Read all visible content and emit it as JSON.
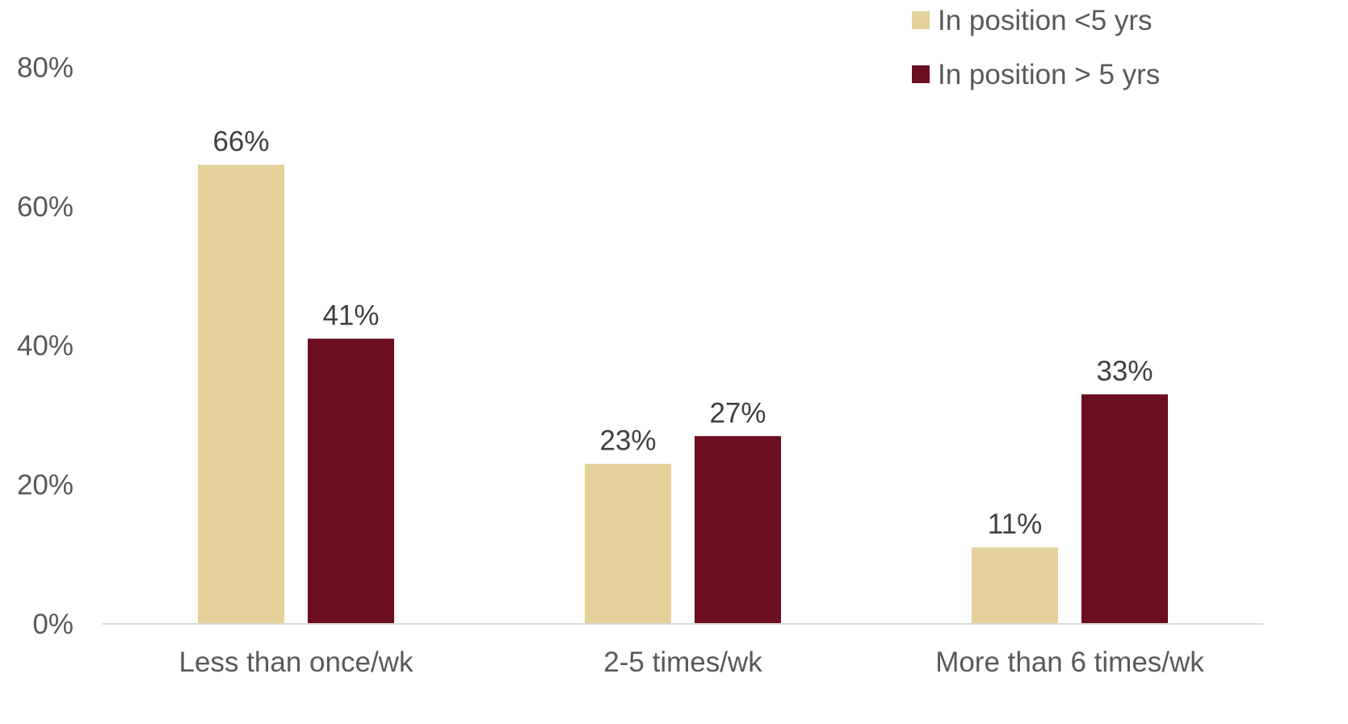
{
  "chart_data": {
    "type": "bar",
    "title": "",
    "xlabel": "",
    "ylabel": "",
    "ylim": [
      0,
      80
    ],
    "yticks": [
      0,
      20,
      40,
      60,
      80
    ],
    "ytick_labels": [
      "0%",
      "20%",
      "40%",
      "60%",
      "80%"
    ],
    "grid": false,
    "legend_position": "top-right",
    "categories": [
      "Less than once/wk",
      "2-5 times/wk",
      "More than 6 times/wk"
    ],
    "series": [
      {
        "name": "In position <5 yrs",
        "color": "#E4D29A",
        "values": [
          66,
          23,
          11
        ],
        "labels": [
          "66%",
          "23%",
          "11%"
        ]
      },
      {
        "name": "In position > 5 yrs",
        "color": "#6C0E1F",
        "values": [
          41,
          27,
          33
        ],
        "labels": [
          "41%",
          "27%",
          "33%"
        ]
      }
    ]
  }
}
